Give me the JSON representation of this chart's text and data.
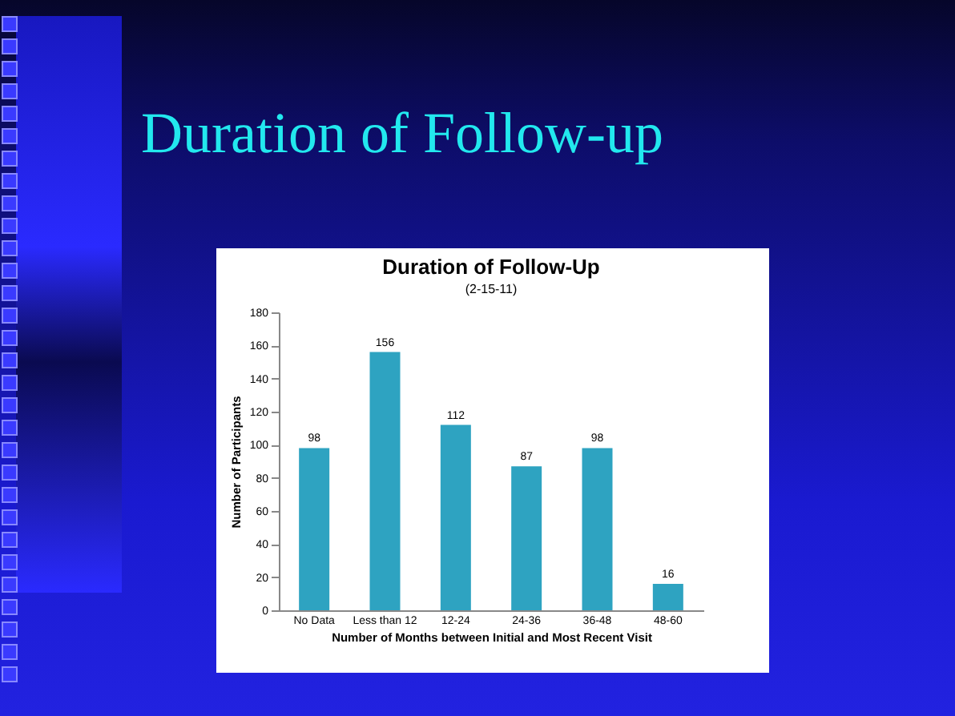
{
  "chart_data": {
    "type": "bar",
    "title": "Duration of Follow-Up",
    "subtitle": "(2-15-11)",
    "annotations": [
      "Duration of Follow-up"
    ],
    "xlabel": "Number of Months between Initial and Most Recent Visit",
    "ylabel": "Number of Participants",
    "categories": [
      "No Data",
      "Less than 12",
      "12-24",
      "24-36",
      "36-48",
      "48-60"
    ],
    "values": [
      98,
      156,
      112,
      87,
      98,
      16
    ],
    "color": "#2ea3c1",
    "ylim": [
      0,
      180
    ],
    "yticks": [
      0,
      20,
      40,
      60,
      80,
      100,
      120,
      140,
      160,
      180
    ],
    "data_labels": true,
    "grid": false
  }
}
